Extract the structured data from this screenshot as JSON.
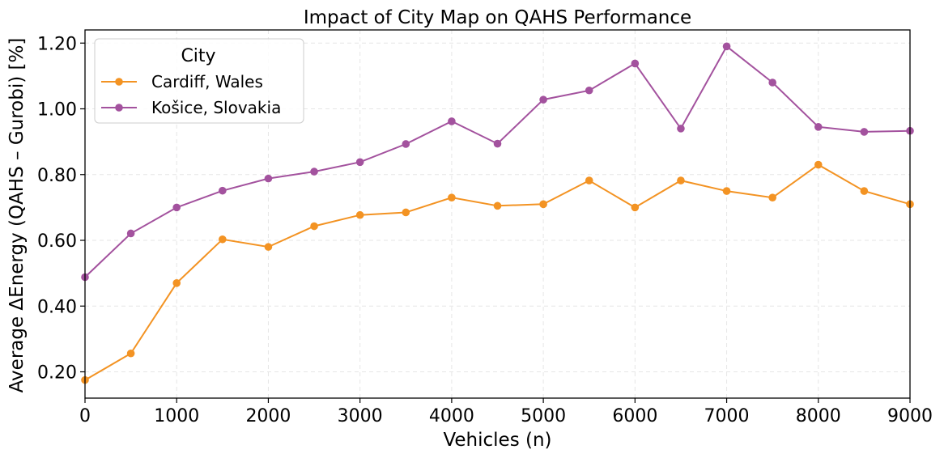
{
  "chart_data": {
    "type": "line",
    "title": "Impact of City Map on QAHS Performance",
    "xlabel": "Vehicles (n)",
    "ylabel": "Average ΔEnergy (QAHS – Gurobi) [%]",
    "xlim": [
      0,
      9000
    ],
    "ylim": [
      0.12,
      1.24
    ],
    "xticks": [
      0,
      1000,
      2000,
      3000,
      4000,
      5000,
      6000,
      7000,
      8000,
      9000
    ],
    "xtick_labels": [
      "0",
      "1000",
      "2000",
      "3000",
      "4000",
      "5000",
      "6000",
      "7000",
      "8000",
      "9000"
    ],
    "yticks": [
      0.2,
      0.4,
      0.6,
      0.8,
      1.0,
      1.2
    ],
    "ytick_labels": [
      "0.20",
      "0.40",
      "0.60",
      "0.80",
      "1.00",
      "1.20"
    ],
    "grid": true,
    "legend": {
      "title": "City",
      "placement": "top-left"
    },
    "x": [
      0,
      500,
      1000,
      1500,
      2000,
      2500,
      3000,
      3500,
      4000,
      4500,
      5000,
      5500,
      6000,
      6500,
      7000,
      7500,
      8000,
      8500,
      9000
    ],
    "series": [
      {
        "name": "Cardiff, Wales",
        "color": "#f39323",
        "values": [
          0.175,
          0.256,
          0.47,
          0.603,
          0.58,
          0.643,
          0.677,
          0.685,
          0.73,
          0.705,
          0.71,
          0.782,
          0.7,
          0.782,
          0.75,
          0.73,
          0.83,
          0.75,
          0.71
        ]
      },
      {
        "name": "Košice, Slovakia",
        "color": "#a3529e",
        "values": [
          0.488,
          0.621,
          0.7,
          0.751,
          0.788,
          0.809,
          0.838,
          0.893,
          0.962,
          0.894,
          1.028,
          1.056,
          1.138,
          0.94,
          1.19,
          1.08,
          0.945,
          0.93,
          0.933
        ]
      }
    ]
  }
}
